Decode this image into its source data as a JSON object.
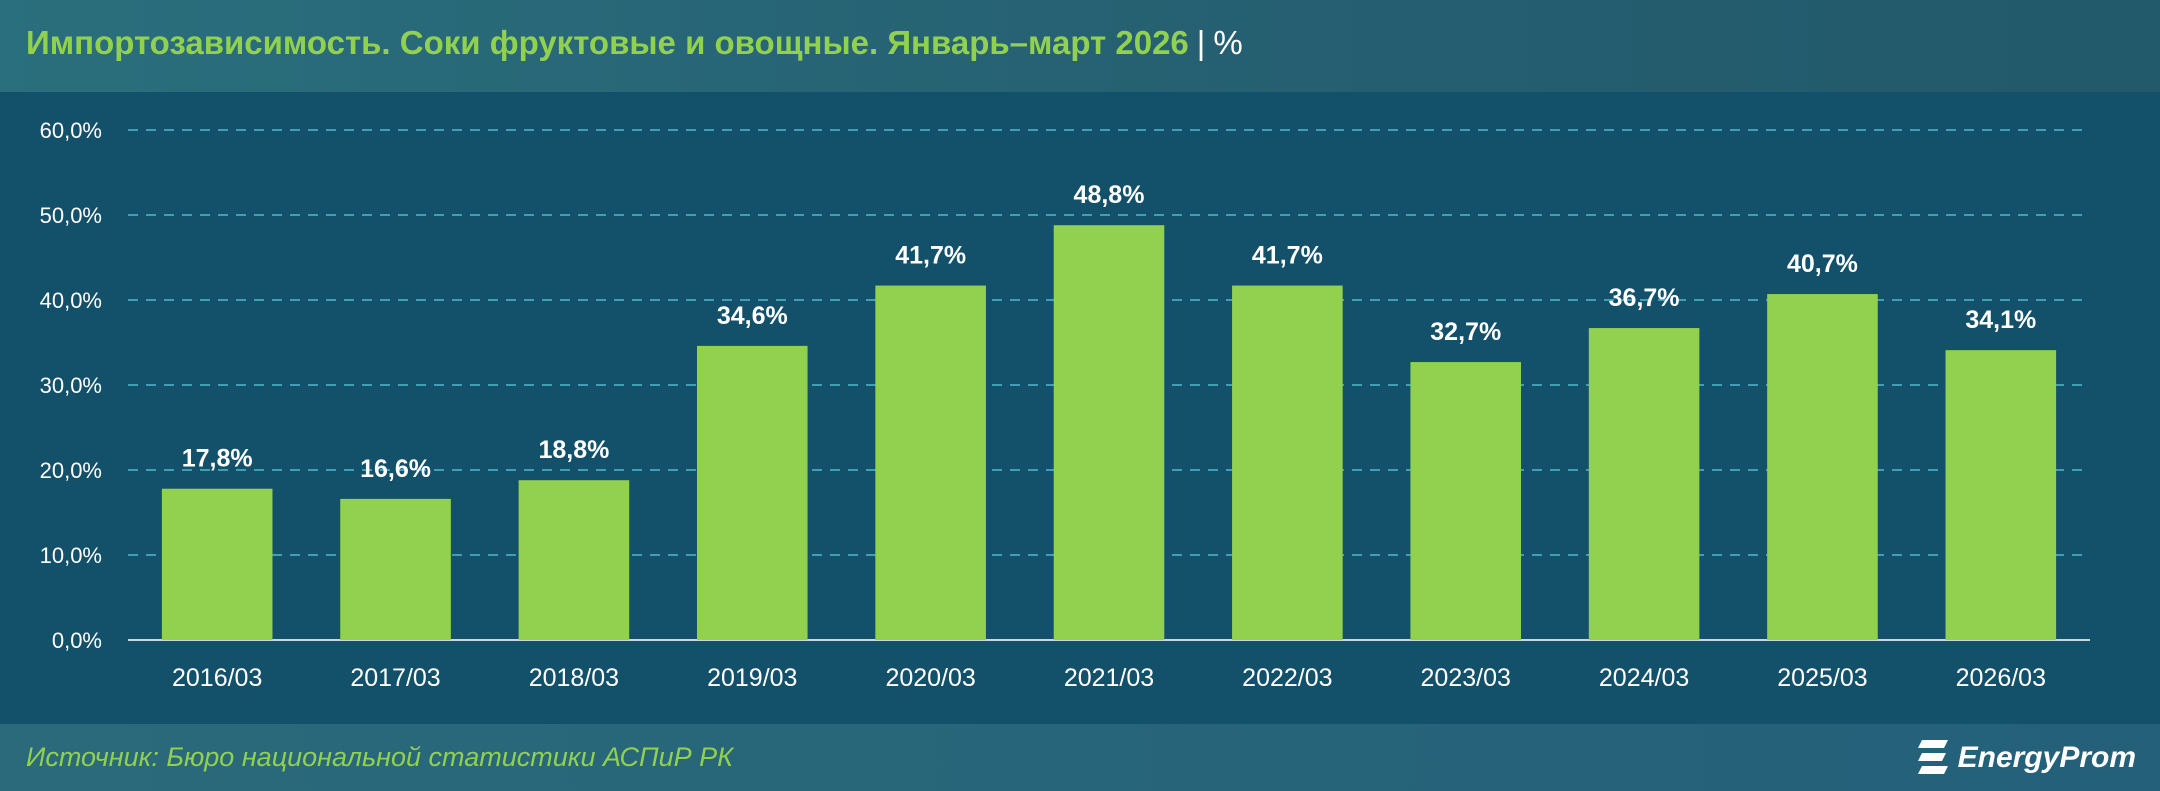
{
  "header": {
    "title": "Импортозависимость. Соки фруктовые и овощные. Январь–март 2026",
    "separator": "|",
    "unit": "%"
  },
  "footer": {
    "source": "Источник: Бюро национальной статистики АСПиР РК",
    "logo_text": "EnergyProm"
  },
  "colors": {
    "bar": "#92d050",
    "background": "#13506a",
    "grid": "#3f9fb5",
    "title": "#92d050",
    "text": "#ffffff"
  },
  "chart_data": {
    "type": "bar",
    "title": "Импортозависимость. Соки фруктовые и овощные. Январь–март 2026",
    "xlabel": "",
    "ylabel": "",
    "categories": [
      "2016/03",
      "2017/03",
      "2018/03",
      "2019/03",
      "2020/03",
      "2021/03",
      "2022/03",
      "2023/03",
      "2024/03",
      "2025/03",
      "2026/03"
    ],
    "values": [
      17.8,
      16.6,
      18.8,
      34.6,
      41.7,
      48.8,
      41.7,
      32.7,
      36.7,
      40.7,
      34.1
    ],
    "value_labels": [
      "17,8%",
      "16,6%",
      "18,8%",
      "34,6%",
      "41,7%",
      "48,8%",
      "41,7%",
      "32,7%",
      "36,7%",
      "40,7%",
      "34,1%"
    ],
    "yticks": [
      0,
      10,
      20,
      30,
      40,
      50,
      60
    ],
    "ytick_labels": [
      "0,0%",
      "10,0%",
      "20,0%",
      "30,0%",
      "40,0%",
      "50,0%",
      "60,0%"
    ],
    "ylim": [
      0,
      60
    ],
    "grid": true,
    "legend": "none"
  }
}
